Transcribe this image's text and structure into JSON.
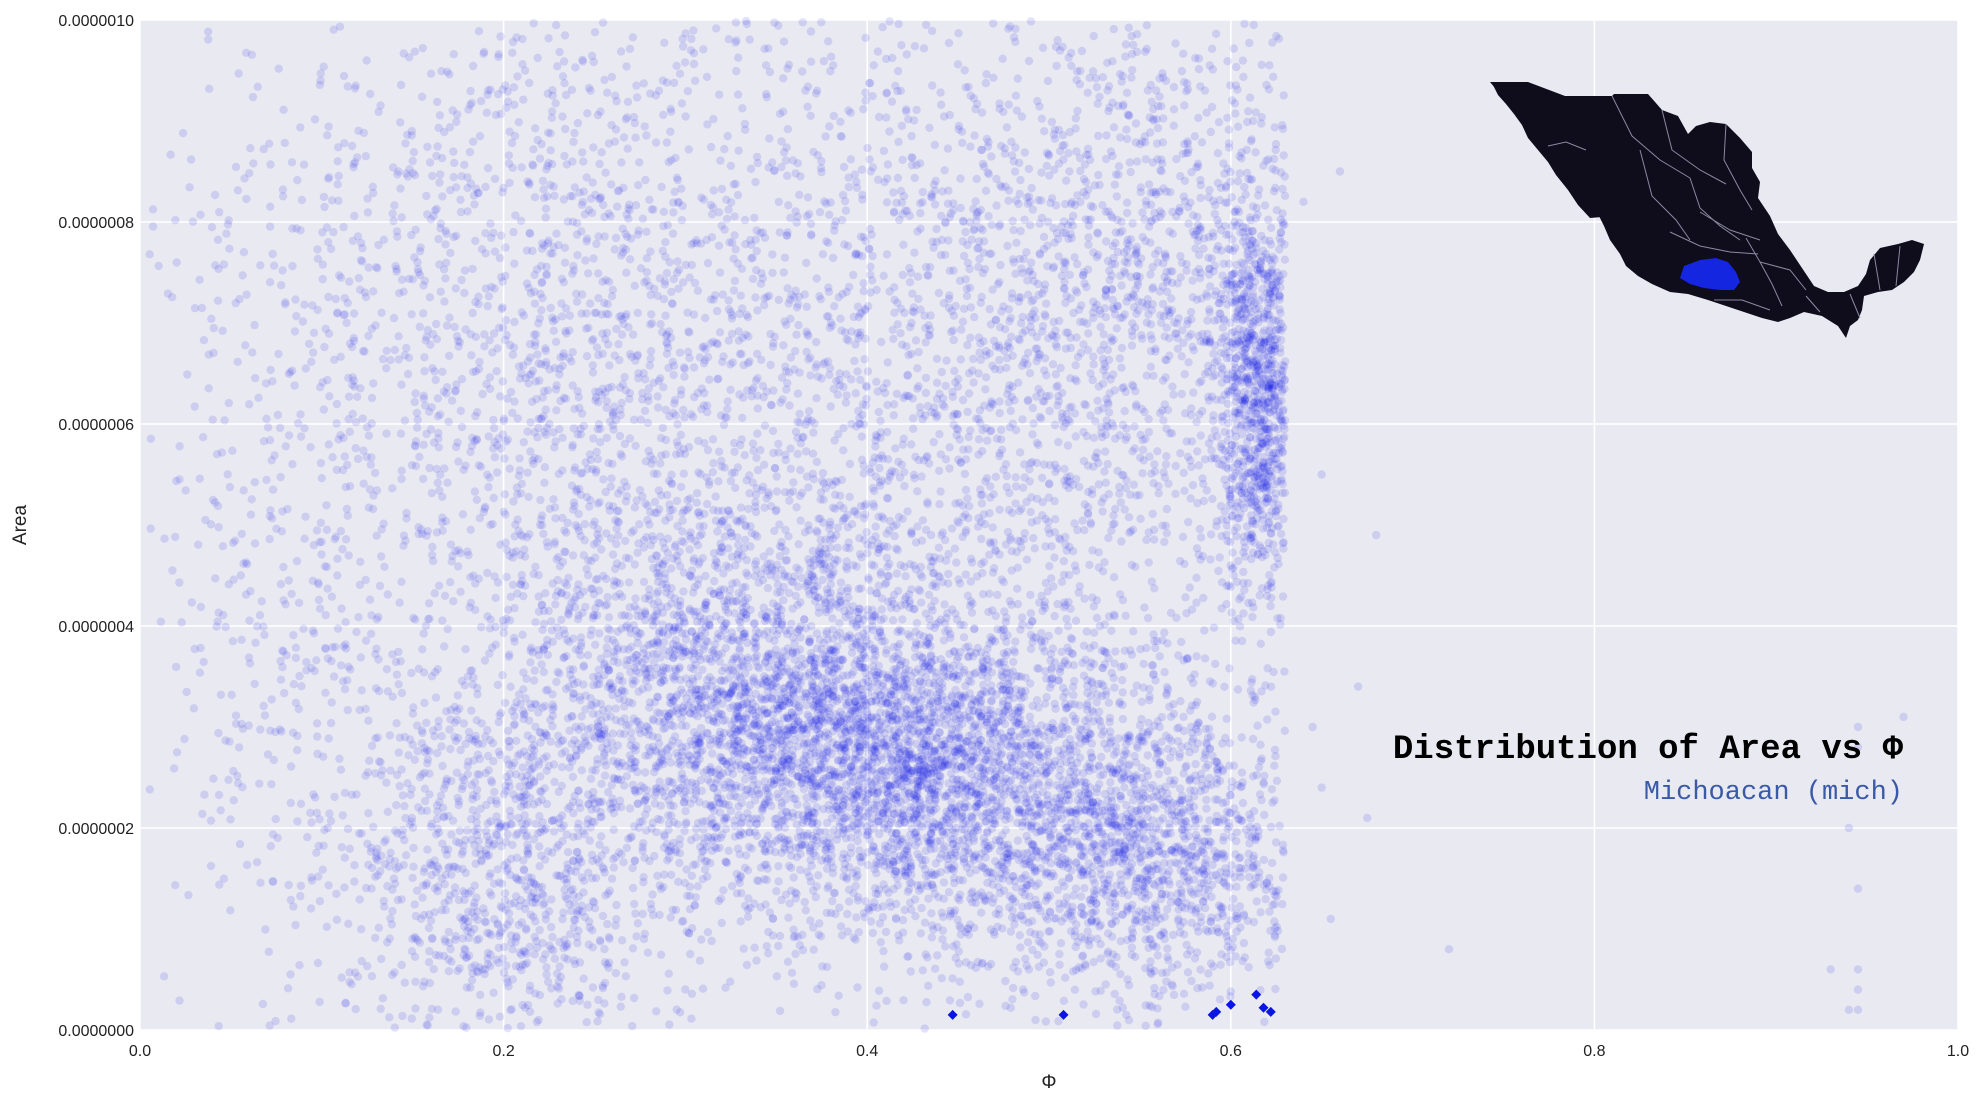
{
  "chart_data": {
    "type": "scatter",
    "title": "Distribution of Area vs Φ",
    "subtitle": "Michoacan (mich)",
    "xlabel": "Φ",
    "ylabel": "Area",
    "xlim": [
      0.0,
      1.0
    ],
    "ylim": [
      0.0,
      1e-06
    ],
    "x_ticks": [
      {
        "value": 0.0,
        "label": "0.0"
      },
      {
        "value": 0.2,
        "label": "0.2"
      },
      {
        "value": 0.4,
        "label": "0.4"
      },
      {
        "value": 0.6,
        "label": "0.6"
      },
      {
        "value": 0.8,
        "label": "0.8"
      },
      {
        "value": 1.0,
        "label": "1.0"
      }
    ],
    "y_ticks": [
      {
        "value": 0.0,
        "label": "0.0000000"
      },
      {
        "value": 2e-07,
        "label": "0.0000002"
      },
      {
        "value": 4e-07,
        "label": "0.0000004"
      },
      {
        "value": 6e-07,
        "label": "0.0000006"
      },
      {
        "value": 8e-07,
        "label": "0.0000008"
      },
      {
        "value": 1e-06,
        "label": "0.0000010"
      }
    ],
    "grid": true,
    "legend": "none",
    "colors": {
      "points": "#0a14e6",
      "highlight": "#0a14e6",
      "plot_background": "#e9e9f1",
      "grid": "#ffffff",
      "subtitle": "#3a5aa8",
      "map_land": "#0f0c1c",
      "map_region": "#1426e0",
      "map_borders": "#8a8aa0"
    },
    "series": [
      {
        "marker": "circle",
        "alpha": 0.12,
        "clusters": [
          {
            "cx": 0.42,
            "cy": 2.6e-07,
            "sx": 0.06,
            "sy": 8e-08,
            "n": 2600
          },
          {
            "cx": 0.32,
            "cy": 3.4e-07,
            "sx": 0.06,
            "sy": 9e-08,
            "n": 1500
          },
          {
            "cx": 0.55,
            "cy": 1.8e-07,
            "sx": 0.05,
            "sy": 8e-08,
            "n": 1400
          },
          {
            "cx": 0.615,
            "cy": 6.3e-07,
            "sx": 0.012,
            "sy": 1e-07,
            "n": 900
          },
          {
            "cx": 0.2,
            "cy": 1.6e-07,
            "sx": 0.05,
            "sy": 1e-07,
            "n": 1000
          },
          {
            "cx": 0.4,
            "cy": 6e-07,
            "sx": 0.13,
            "sy": 2.5e-07,
            "n": 3200
          },
          {
            "cx": 0.2,
            "cy": 7e-07,
            "sx": 0.07,
            "sy": 2e-07,
            "n": 1000
          },
          {
            "cx": 0.55,
            "cy": 7.5e-07,
            "sx": 0.06,
            "sy": 1.5e-07,
            "n": 1000
          },
          {
            "cx": 0.08,
            "cy": 5e-07,
            "sx": 0.04,
            "sy": 2.5e-07,
            "n": 400
          }
        ],
        "x_max_bulk": 0.63,
        "outliers": [
          [
            0.66,
            8.5e-07
          ],
          [
            0.65,
            5.5e-07
          ],
          [
            0.68,
            4.9e-07
          ],
          [
            0.67,
            3.4e-07
          ],
          [
            0.65,
            2.4e-07
          ],
          [
            0.675,
            2.1e-07
          ],
          [
            0.72,
            8e-08
          ],
          [
            0.655,
            1.1e-07
          ],
          [
            0.945,
            3e-07
          ],
          [
            0.945,
            2.8e-07
          ],
          [
            0.94,
            2e-07
          ],
          [
            0.945,
            1.4e-07
          ],
          [
            0.945,
            6e-08
          ],
          [
            0.945,
            4e-08
          ],
          [
            0.945,
            2e-08
          ],
          [
            0.93,
            6e-08
          ],
          [
            0.94,
            2e-08
          ],
          [
            0.97,
            3.1e-07
          ],
          [
            0.64,
            8.2e-07
          ],
          [
            0.645,
            3e-07
          ]
        ]
      },
      {
        "marker": "diamond",
        "alpha": 1.0,
        "points": [
          [
            0.447,
            1.5e-08
          ],
          [
            0.508,
            1.5e-08
          ],
          [
            0.59,
            1.5e-08
          ],
          [
            0.618,
            2.2e-08
          ],
          [
            0.614,
            3.5e-08
          ],
          [
            0.592,
            1.8e-08
          ],
          [
            0.6,
            2.5e-08
          ],
          [
            0.622,
            1.8e-08
          ]
        ]
      }
    ]
  }
}
